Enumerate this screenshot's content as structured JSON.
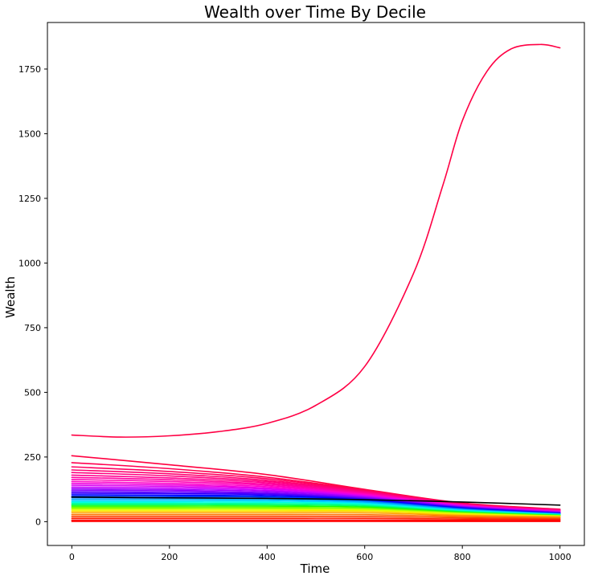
{
  "chart_data": {
    "type": "line",
    "title": "Wealth over Time By Decile",
    "xlabel": "Time",
    "ylabel": "Wealth",
    "xlim": [
      -50,
      1050
    ],
    "ylim": [
      -92,
      1930
    ],
    "xticks": [
      0,
      200,
      400,
      600,
      800,
      1000
    ],
    "yticks": [
      0,
      250,
      500,
      750,
      1000,
      1250,
      1500,
      1750
    ],
    "grid": false,
    "legend": "none",
    "series": [
      {
        "color": "#ff0044",
        "points": [
          [
            0,
            335
          ],
          [
            100,
            327
          ],
          [
            200,
            332
          ],
          [
            300,
            348
          ],
          [
            400,
            380
          ],
          [
            500,
            450
          ],
          [
            600,
            600
          ],
          [
            700,
            960
          ],
          [
            760,
            1300
          ],
          [
            800,
            1550
          ],
          [
            850,
            1740
          ],
          [
            900,
            1828
          ],
          [
            960,
            1845
          ],
          [
            1000,
            1832
          ]
        ]
      },
      {
        "color": "#ff0040",
        "points": [
          [
            0,
            255
          ],
          [
            200,
            220
          ],
          [
            400,
            182
          ],
          [
            600,
            125
          ],
          [
            800,
            72
          ],
          [
            1000,
            48
          ]
        ]
      },
      {
        "color": "#ff0050",
        "points": [
          [
            0,
            228
          ],
          [
            200,
            205
          ],
          [
            400,
            172
          ],
          [
            600,
            122
          ],
          [
            800,
            70
          ],
          [
            1000,
            47
          ]
        ]
      },
      {
        "color": "#ff0060",
        "points": [
          [
            0,
            212
          ],
          [
            200,
            194
          ],
          [
            400,
            166
          ],
          [
            600,
            120
          ],
          [
            800,
            69
          ],
          [
            1000,
            46
          ]
        ]
      },
      {
        "color": "#ff0070",
        "points": [
          [
            0,
            200
          ],
          [
            200,
            185
          ],
          [
            400,
            160
          ],
          [
            600,
            117
          ],
          [
            800,
            68
          ],
          [
            1000,
            45
          ]
        ]
      },
      {
        "color": "#ff0080",
        "points": [
          [
            0,
            190
          ],
          [
            200,
            177
          ],
          [
            400,
            155
          ],
          [
            600,
            115
          ],
          [
            800,
            67
          ],
          [
            1000,
            44
          ]
        ]
      },
      {
        "color": "#ff0090",
        "points": [
          [
            0,
            180
          ],
          [
            200,
            169
          ],
          [
            400,
            150
          ],
          [
            600,
            112
          ],
          [
            800,
            66
          ],
          [
            1000,
            43
          ]
        ]
      },
      {
        "color": "#ff00a0",
        "points": [
          [
            0,
            171
          ],
          [
            200,
            162
          ],
          [
            400,
            145
          ],
          [
            600,
            110
          ],
          [
            800,
            65
          ],
          [
            1000,
            42
          ]
        ]
      },
      {
        "color": "#ff00b4",
        "points": [
          [
            0,
            163
          ],
          [
            200,
            155
          ],
          [
            400,
            140
          ],
          [
            600,
            107
          ],
          [
            800,
            64
          ],
          [
            1000,
            41
          ]
        ]
      },
      {
        "color": "#ff00c8",
        "points": [
          [
            0,
            155
          ],
          [
            200,
            148
          ],
          [
            400,
            135
          ],
          [
            600,
            105
          ],
          [
            800,
            63
          ],
          [
            1000,
            40
          ]
        ]
      },
      {
        "color": "#f000dc",
        "points": [
          [
            0,
            148
          ],
          [
            200,
            142
          ],
          [
            400,
            130
          ],
          [
            600,
            102
          ],
          [
            800,
            62
          ],
          [
            1000,
            39
          ]
        ]
      },
      {
        "color": "#dc00f0",
        "points": [
          [
            0,
            141
          ],
          [
            200,
            136
          ],
          [
            400,
            126
          ],
          [
            600,
            100
          ],
          [
            800,
            61
          ],
          [
            1000,
            38
          ]
        ]
      },
      {
        "color": "#c800ff",
        "points": [
          [
            0,
            134
          ],
          [
            200,
            130
          ],
          [
            400,
            121
          ],
          [
            600,
            97
          ],
          [
            800,
            60
          ],
          [
            1000,
            37
          ]
        ]
      },
      {
        "color": "#a000ff",
        "points": [
          [
            0,
            128
          ],
          [
            200,
            124
          ],
          [
            400,
            117
          ],
          [
            600,
            95
          ],
          [
            800,
            58
          ],
          [
            1000,
            36
          ]
        ]
      },
      {
        "color": "#8000ff",
        "points": [
          [
            0,
            122
          ],
          [
            200,
            119
          ],
          [
            400,
            112
          ],
          [
            600,
            92
          ],
          [
            800,
            57
          ],
          [
            1000,
            35
          ]
        ]
      },
      {
        "color": "#5a00ff",
        "points": [
          [
            0,
            116
          ],
          [
            200,
            113
          ],
          [
            400,
            108
          ],
          [
            600,
            89
          ],
          [
            800,
            55
          ],
          [
            1000,
            34
          ]
        ]
      },
      {
        "color": "#3000ff",
        "points": [
          [
            0,
            110
          ],
          [
            200,
            108
          ],
          [
            400,
            104
          ],
          [
            600,
            87
          ],
          [
            800,
            54
          ],
          [
            1000,
            33
          ]
        ]
      },
      {
        "color": "#0000ff",
        "points": [
          [
            0,
            104
          ],
          [
            200,
            102
          ],
          [
            400,
            99
          ],
          [
            600,
            84
          ],
          [
            800,
            52
          ],
          [
            1000,
            32
          ]
        ]
      },
      {
        "color": "#000000",
        "points": [
          [
            0,
            95
          ],
          [
            200,
            92
          ],
          [
            400,
            90
          ],
          [
            600,
            85
          ],
          [
            800,
            76
          ],
          [
            1000,
            64
          ]
        ]
      },
      {
        "color": "#0040ff",
        "points": [
          [
            0,
            98
          ],
          [
            200,
            97
          ],
          [
            400,
            95
          ],
          [
            600,
            81
          ],
          [
            800,
            50
          ],
          [
            1000,
            31
          ]
        ]
      },
      {
        "color": "#0080ff",
        "points": [
          [
            0,
            92
          ],
          [
            200,
            91
          ],
          [
            400,
            90
          ],
          [
            600,
            78
          ],
          [
            800,
            48
          ],
          [
            1000,
            30
          ]
        ]
      },
      {
        "color": "#00b0ff",
        "points": [
          [
            0,
            86
          ],
          [
            200,
            86
          ],
          [
            400,
            85
          ],
          [
            600,
            75
          ],
          [
            800,
            46
          ],
          [
            1000,
            29
          ]
        ]
      },
      {
        "color": "#00d8ff",
        "points": [
          [
            0,
            80
          ],
          [
            200,
            80
          ],
          [
            400,
            80
          ],
          [
            600,
            71
          ],
          [
            800,
            44
          ],
          [
            1000,
            28
          ]
        ]
      },
      {
        "color": "#00ffe0",
        "points": [
          [
            0,
            75
          ],
          [
            200,
            75
          ],
          [
            400,
            75
          ],
          [
            600,
            68
          ],
          [
            800,
            42
          ],
          [
            1000,
            27
          ]
        ]
      },
      {
        "color": "#00ffa0",
        "points": [
          [
            0,
            70
          ],
          [
            200,
            70
          ],
          [
            400,
            70
          ],
          [
            600,
            64
          ],
          [
            800,
            40
          ],
          [
            1000,
            26
          ]
        ]
      },
      {
        "color": "#00ff60",
        "points": [
          [
            0,
            65
          ],
          [
            200,
            65
          ],
          [
            400,
            65
          ],
          [
            600,
            60
          ],
          [
            800,
            38
          ],
          [
            1000,
            25
          ]
        ]
      },
      {
        "color": "#20ff00",
        "points": [
          [
            0,
            60
          ],
          [
            200,
            60
          ],
          [
            400,
            60
          ],
          [
            600,
            56
          ],
          [
            800,
            36
          ],
          [
            1000,
            24
          ]
        ]
      },
      {
        "color": "#70ff00",
        "points": [
          [
            0,
            55
          ],
          [
            200,
            55
          ],
          [
            400,
            55
          ],
          [
            600,
            52
          ],
          [
            800,
            34
          ],
          [
            1000,
            23
          ]
        ]
      },
      {
        "color": "#b0ff00",
        "points": [
          [
            0,
            50
          ],
          [
            200,
            50
          ],
          [
            400,
            50
          ],
          [
            600,
            48
          ],
          [
            800,
            32
          ],
          [
            1000,
            22
          ]
        ]
      },
      {
        "color": "#e8ff00",
        "points": [
          [
            0,
            45
          ],
          [
            200,
            45
          ],
          [
            400,
            45
          ],
          [
            600,
            44
          ],
          [
            800,
            30
          ],
          [
            1000,
            21
          ]
        ]
      },
      {
        "color": "#ffd800",
        "points": [
          [
            0,
            40
          ],
          [
            200,
            40
          ],
          [
            400,
            40
          ],
          [
            600,
            40
          ],
          [
            800,
            27
          ],
          [
            1000,
            20
          ]
        ]
      },
      {
        "color": "#ffa000",
        "points": [
          [
            0,
            34
          ],
          [
            200,
            34
          ],
          [
            400,
            34
          ],
          [
            600,
            34
          ],
          [
            800,
            24
          ],
          [
            1000,
            18
          ]
        ]
      },
      {
        "color": "#ff7000",
        "points": [
          [
            0,
            27
          ],
          [
            200,
            27
          ],
          [
            400,
            27
          ],
          [
            600,
            27
          ],
          [
            800,
            20
          ],
          [
            1000,
            15
          ]
        ]
      },
      {
        "color": "#ff4000",
        "points": [
          [
            0,
            20
          ],
          [
            200,
            20
          ],
          [
            400,
            20
          ],
          [
            600,
            20
          ],
          [
            800,
            15
          ],
          [
            1000,
            11
          ]
        ]
      },
      {
        "color": "#ff2000",
        "points": [
          [
            0,
            13
          ],
          [
            200,
            13
          ],
          [
            400,
            13
          ],
          [
            600,
            13
          ],
          [
            800,
            10
          ],
          [
            1000,
            8
          ]
        ]
      },
      {
        "color": "#ff0000",
        "points": [
          [
            0,
            6
          ],
          [
            200,
            6
          ],
          [
            400,
            6
          ],
          [
            600,
            6
          ],
          [
            800,
            5
          ],
          [
            1000,
            4
          ]
        ]
      },
      {
        "color": "#ff0000",
        "points": [
          [
            0,
            1
          ],
          [
            200,
            1
          ],
          [
            400,
            1
          ],
          [
            600,
            1
          ],
          [
            800,
            1
          ],
          [
            1000,
            1
          ]
        ]
      }
    ]
  }
}
